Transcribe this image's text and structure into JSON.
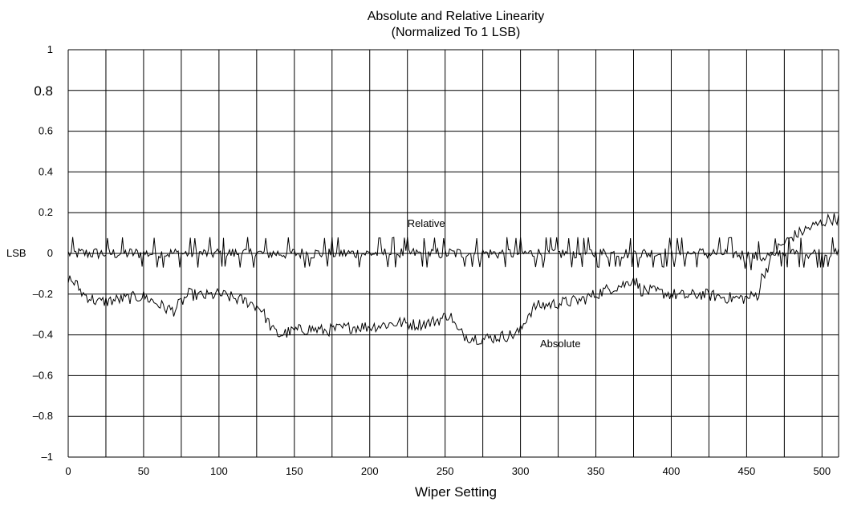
{
  "chart_data": {
    "type": "line",
    "title": "Absolute and Relative Linearity",
    "subtitle": "(Normalized To 1 LSB)",
    "xlabel": "Wiper Setting",
    "ylabel": "LSB",
    "xlim": [
      0,
      511
    ],
    "ylim": [
      -1,
      1
    ],
    "grid": true,
    "x_ticks": [
      0,
      50,
      100,
      150,
      200,
      250,
      300,
      350,
      400,
      450,
      500
    ],
    "x_tick_labels": [
      "0",
      "50",
      "100",
      "150",
      "200",
      "250",
      "300",
      "350",
      "400",
      "450",
      "500"
    ],
    "y_ticks": [
      1,
      0.8,
      0.6,
      0.4,
      0.2,
      0,
      -0.2,
      -0.4,
      -0.6,
      -0.8,
      -1
    ],
    "y_tick_labels": [
      "1",
      "0.8",
      "0.6",
      "0.4",
      "0.2",
      "0",
      "–0.2",
      "–0.4",
      "–0.6",
      "–0.8",
      "–1"
    ],
    "series": [
      {
        "name": "Relative",
        "x": [
          0,
          20,
          40,
          60,
          80,
          100,
          120,
          140,
          160,
          180,
          200,
          220,
          240,
          260,
          280,
          300,
          320,
          340,
          360,
          380,
          400,
          420,
          440,
          460,
          470,
          490,
          511
        ],
        "values": [
          0,
          0,
          0,
          0,
          0,
          0,
          0,
          0,
          0,
          0,
          0,
          0,
          0,
          0,
          0,
          0,
          0,
          0,
          0,
          0,
          0,
          0,
          0,
          -0.02,
          0,
          0,
          0
        ]
      },
      {
        "name": "Absolute",
        "x": [
          0,
          5,
          10,
          15,
          20,
          30,
          40,
          50,
          60,
          65,
          70,
          75,
          80,
          90,
          100,
          110,
          120,
          128,
          132,
          136,
          140,
          150,
          160,
          170,
          180,
          190,
          200,
          210,
          220,
          230,
          240,
          248,
          252,
          255,
          258,
          265,
          275,
          285,
          295,
          300,
          305,
          310,
          320,
          330,
          340,
          350,
          360,
          370,
          375,
          380,
          390,
          400,
          410,
          420,
          430,
          440,
          450,
          458,
          460,
          465,
          470,
          480,
          490,
          500,
          505,
          511
        ],
        "values": [
          -0.12,
          -0.15,
          -0.2,
          -0.22,
          -0.24,
          -0.23,
          -0.22,
          -0.21,
          -0.25,
          -0.27,
          -0.28,
          -0.24,
          -0.2,
          -0.21,
          -0.2,
          -0.22,
          -0.24,
          -0.27,
          -0.33,
          -0.38,
          -0.4,
          -0.38,
          -0.37,
          -0.38,
          -0.37,
          -0.36,
          -0.36,
          -0.35,
          -0.34,
          -0.35,
          -0.34,
          -0.32,
          -0.3,
          -0.32,
          -0.38,
          -0.41,
          -0.42,
          -0.41,
          -0.4,
          -0.38,
          -0.3,
          -0.26,
          -0.25,
          -0.24,
          -0.23,
          -0.2,
          -0.17,
          -0.15,
          -0.12,
          -0.18,
          -0.19,
          -0.2,
          -0.21,
          -0.2,
          -0.21,
          -0.22,
          -0.22,
          -0.2,
          -0.12,
          -0.05,
          0.02,
          0.08,
          0.12,
          0.15,
          0.17,
          0.17
        ]
      }
    ],
    "annotations": [
      {
        "text": "Relative",
        "x": 225,
        "y": 0.13
      },
      {
        "text": "Absolute",
        "x": 313,
        "y": -0.46
      }
    ]
  }
}
